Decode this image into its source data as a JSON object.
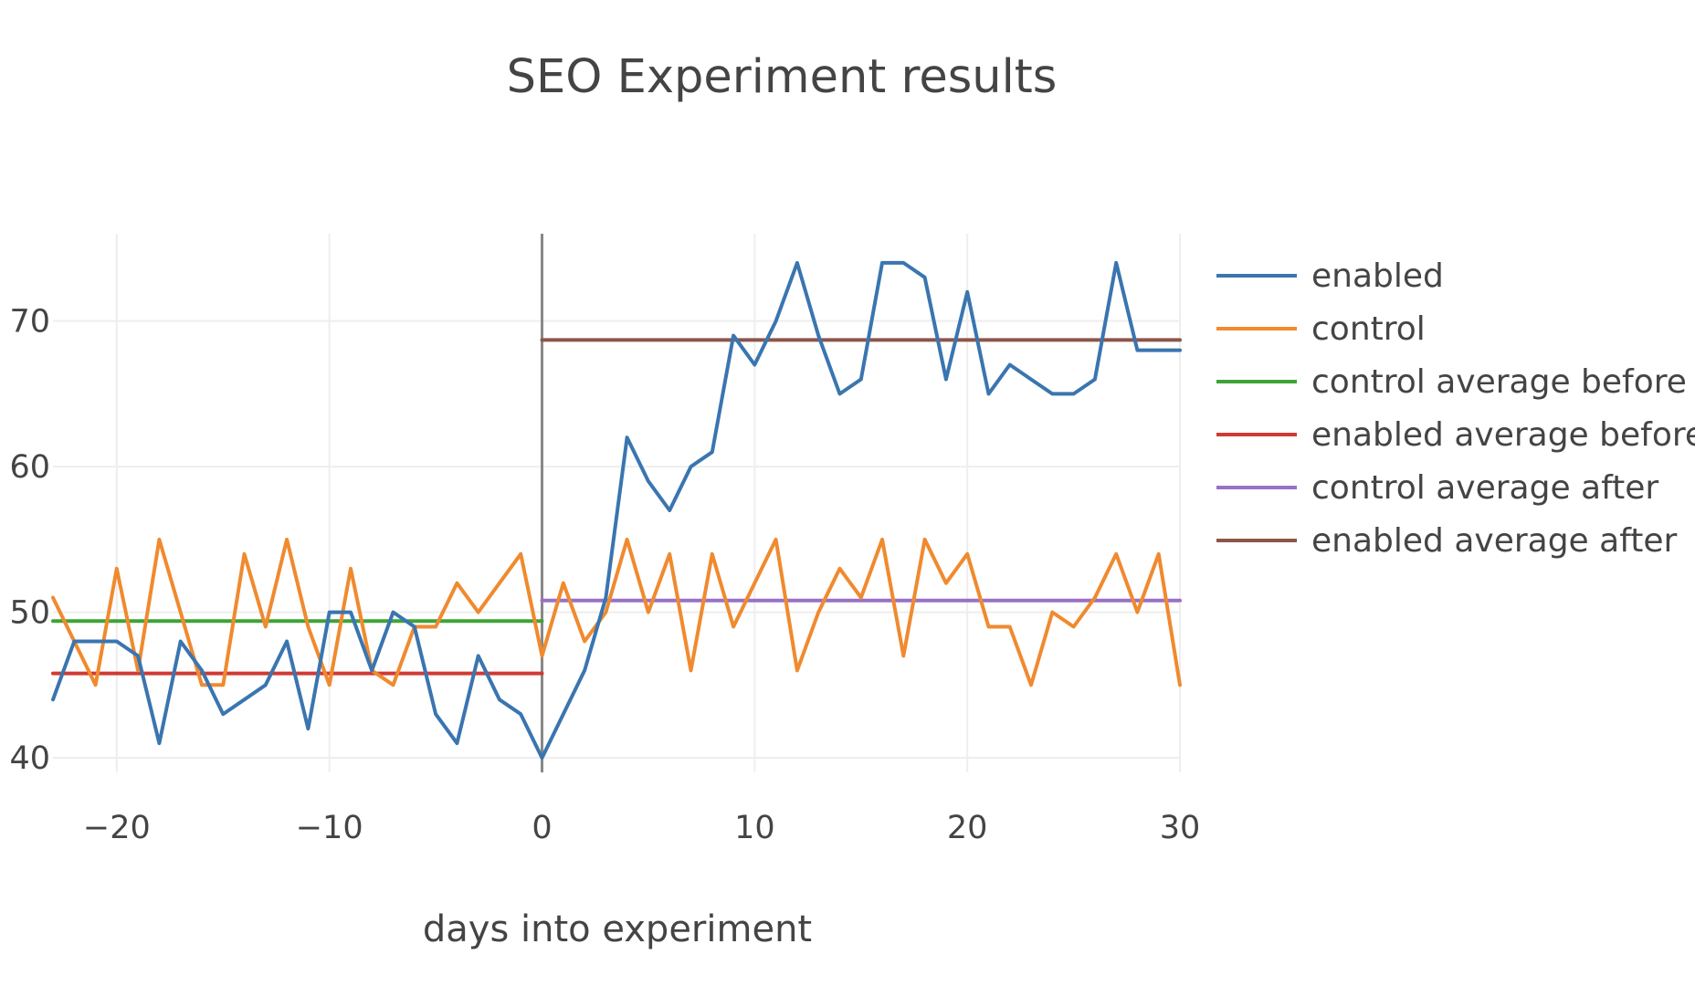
{
  "chart_data": {
    "type": "line",
    "title": "SEO Experiment results",
    "xlabel": "days into experiment",
    "ylabel": "",
    "xlim": [
      -23,
      30
    ],
    "ylim": [
      39,
      76
    ],
    "x_ticks": [
      -20,
      -10,
      0,
      10,
      20,
      30
    ],
    "x_tick_labels": [
      "−20",
      "−10",
      "0",
      "10",
      "20",
      "30"
    ],
    "y_ticks": [
      40,
      50,
      60,
      70
    ],
    "y_tick_labels": [
      "40",
      "50",
      "60",
      "70"
    ],
    "grid": true,
    "legend_position": "right",
    "series": [
      {
        "name": "enabled",
        "color": "#3a75b0",
        "x": [
          -23,
          -22,
          -21,
          -20,
          -19,
          -18,
          -17,
          -16,
          -15,
          -14,
          -13,
          -12,
          -11,
          -10,
          -9,
          -8,
          -7,
          -6,
          -5,
          -4,
          -3,
          -2,
          -1,
          0,
          1,
          2,
          3,
          4,
          5,
          6,
          7,
          8,
          9,
          10,
          11,
          12,
          13,
          14,
          15,
          16,
          17,
          18,
          19,
          20,
          21,
          22,
          23,
          24,
          25,
          26,
          27,
          28,
          29,
          30
        ],
        "values": [
          44,
          48,
          48,
          48,
          47,
          41,
          48,
          46,
          43,
          44,
          45,
          48,
          42,
          50,
          50,
          46,
          50,
          49,
          43,
          41,
          47,
          44,
          43,
          40,
          43,
          46,
          51,
          62,
          59,
          57,
          60,
          61,
          69,
          67,
          70,
          74,
          69,
          65,
          66,
          74,
          74,
          73,
          66,
          72,
          65,
          67,
          66,
          65,
          65,
          66,
          74,
          68,
          68,
          68
        ]
      },
      {
        "name": "control",
        "color": "#f08a2f",
        "x": [
          -23,
          -22,
          -21,
          -20,
          -19,
          -18,
          -17,
          -16,
          -15,
          -14,
          -13,
          -12,
          -11,
          -10,
          -9,
          -8,
          -7,
          -6,
          -5,
          -4,
          -3,
          -2,
          -1,
          0,
          1,
          2,
          3,
          4,
          5,
          6,
          7,
          8,
          9,
          10,
          11,
          12,
          13,
          14,
          15,
          16,
          17,
          18,
          19,
          20,
          21,
          22,
          23,
          24,
          25,
          26,
          27,
          28,
          29,
          30
        ],
        "values": [
          51,
          48,
          45,
          53,
          46,
          55,
          50,
          45,
          45,
          54,
          49,
          55,
          49,
          45,
          53,
          46,
          45,
          49,
          49,
          52,
          50,
          52,
          54,
          47,
          52,
          48,
          50,
          55,
          50,
          54,
          46,
          54,
          49,
          52,
          55,
          46,
          50,
          53,
          51,
          55,
          47,
          55,
          52,
          54,
          49,
          49,
          45,
          50,
          49,
          51,
          54,
          50,
          54,
          45
        ]
      },
      {
        "name": "control average before",
        "color": "#3fa337",
        "x": [
          -23,
          0
        ],
        "values": [
          49.4,
          49.4
        ]
      },
      {
        "name": "enabled average before",
        "color": "#cf3a33",
        "x": [
          -23,
          0
        ],
        "values": [
          45.8,
          45.8
        ]
      },
      {
        "name": "control average after",
        "color": "#9a70c6",
        "x": [
          0,
          30
        ],
        "values": [
          50.8,
          50.8
        ]
      },
      {
        "name": "enabled average after",
        "color": "#8c564b",
        "x": [
          0,
          30
        ],
        "values": [
          68.7,
          68.7
        ]
      }
    ]
  }
}
